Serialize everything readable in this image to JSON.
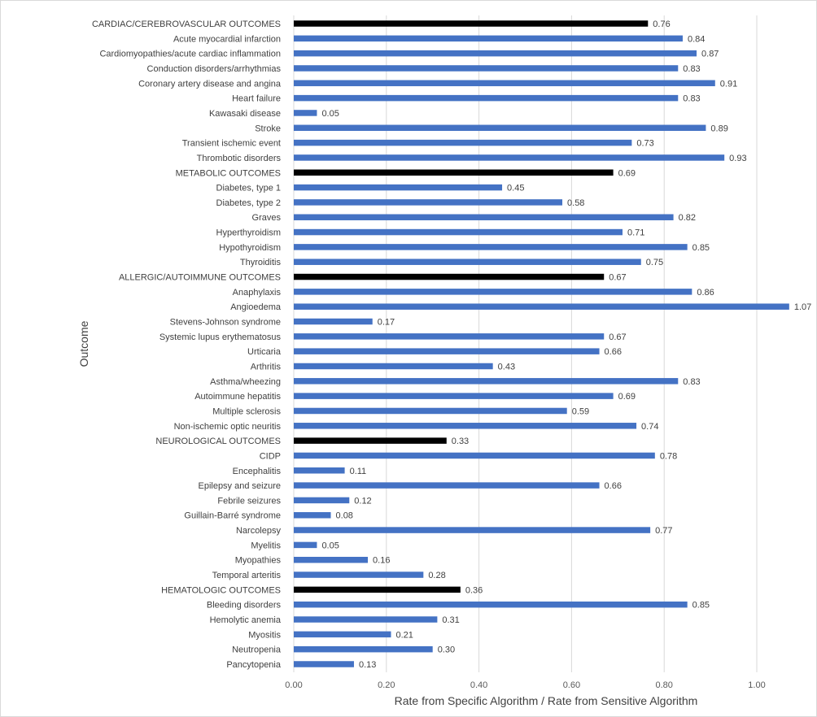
{
  "chart_data": {
    "type": "bar",
    "orientation": "horizontal",
    "title": "",
    "xlabel": "Rate from Specific Algorithm / Rate from Sensitive Algorithm",
    "ylabel": "Outcome",
    "xlim": [
      0,
      1.07
    ],
    "xticks": [
      "0.00",
      "0.20",
      "0.40",
      "0.60",
      "0.80",
      "1.00"
    ],
    "xtick_values": [
      0,
      0.2,
      0.4,
      0.6,
      0.8,
      1.0
    ],
    "grid": true,
    "colors": {
      "category": "#000000",
      "item": "#4472c4"
    },
    "bars": [
      {
        "label": "CARDIAC/CEREBROVASCULAR OUTCOMES",
        "value": 0.765,
        "value_label": "0.76",
        "group": true
      },
      {
        "label": "Acute myocardial infarction",
        "value": 0.84,
        "value_label": "0.84",
        "group": false
      },
      {
        "label": "Cardiomyopathies/acute cardiac inflammation",
        "value": 0.87,
        "value_label": "0.87",
        "group": false
      },
      {
        "label": "Conduction disorders/arrhythmias",
        "value": 0.83,
        "value_label": "0.83",
        "group": false
      },
      {
        "label": "Coronary artery disease and angina",
        "value": 0.91,
        "value_label": "0.91",
        "group": false
      },
      {
        "label": "Heart failure",
        "value": 0.83,
        "value_label": "0.83",
        "group": false
      },
      {
        "label": "Kawasaki disease",
        "value": 0.05,
        "value_label": "0.05",
        "group": false
      },
      {
        "label": "Stroke",
        "value": 0.89,
        "value_label": "0.89",
        "group": false
      },
      {
        "label": "Transient ischemic event",
        "value": 0.73,
        "value_label": "0.73",
        "group": false
      },
      {
        "label": "Thrombotic disorders",
        "value": 0.93,
        "value_label": "0.93",
        "group": false
      },
      {
        "label": "METABOLIC OUTCOMES",
        "value": 0.69,
        "value_label": "0.69",
        "group": true
      },
      {
        "label": "Diabetes, type 1",
        "value": 0.45,
        "value_label": "0.45",
        "group": false
      },
      {
        "label": "Diabetes, type 2",
        "value": 0.58,
        "value_label": "0.58",
        "group": false
      },
      {
        "label": "Graves",
        "value": 0.82,
        "value_label": "0.82",
        "group": false
      },
      {
        "label": "Hyperthyroidism",
        "value": 0.71,
        "value_label": "0.71",
        "group": false
      },
      {
        "label": "Hypothyroidism",
        "value": 0.85,
        "value_label": "0.85",
        "group": false
      },
      {
        "label": "Thyroiditis",
        "value": 0.75,
        "value_label": "0.75",
        "group": false
      },
      {
        "label": "ALLERGIC/AUTOIMMUNE OUTCOMES",
        "value": 0.67,
        "value_label": "0.67",
        "group": true
      },
      {
        "label": "Anaphylaxis",
        "value": 0.86,
        "value_label": "0.86",
        "group": false
      },
      {
        "label": "Angioedema",
        "value": 1.07,
        "value_label": "1.07",
        "group": false
      },
      {
        "label": "Stevens-Johnson syndrome",
        "value": 0.17,
        "value_label": "0.17",
        "group": false
      },
      {
        "label": "Systemic lupus erythematosus",
        "value": 0.67,
        "value_label": "0.67",
        "group": false
      },
      {
        "label": "Urticaria",
        "value": 0.66,
        "value_label": "0.66",
        "group": false
      },
      {
        "label": "Arthritis",
        "value": 0.43,
        "value_label": "0.43",
        "group": false
      },
      {
        "label": "Asthma/wheezing",
        "value": 0.83,
        "value_label": "0.83",
        "group": false
      },
      {
        "label": "Autoimmune hepatitis",
        "value": 0.69,
        "value_label": "0.69",
        "group": false
      },
      {
        "label": "Multiple sclerosis",
        "value": 0.59,
        "value_label": "0.59",
        "group": false
      },
      {
        "label": "Non-ischemic optic neuritis",
        "value": 0.74,
        "value_label": "0.74",
        "group": false
      },
      {
        "label": "NEUROLOGICAL OUTCOMES",
        "value": 0.33,
        "value_label": "0.33",
        "group": true
      },
      {
        "label": "CIDP",
        "value": 0.78,
        "value_label": "0.78",
        "group": false
      },
      {
        "label": "Encephalitis",
        "value": 0.11,
        "value_label": "0.11",
        "group": false
      },
      {
        "label": "Epilepsy and seizure",
        "value": 0.66,
        "value_label": "0.66",
        "group": false
      },
      {
        "label": "Febrile seizures",
        "value": 0.12,
        "value_label": "0.12",
        "group": false
      },
      {
        "label": "Guillain-Barré syndrome",
        "value": 0.08,
        "value_label": "0.08",
        "group": false
      },
      {
        "label": "Narcolepsy",
        "value": 0.77,
        "value_label": "0.77",
        "group": false
      },
      {
        "label": "Myelitis",
        "value": 0.05,
        "value_label": "0.05",
        "group": false
      },
      {
        "label": "Myopathies",
        "value": 0.16,
        "value_label": "0.16",
        "group": false
      },
      {
        "label": "Temporal arteritis",
        "value": 0.28,
        "value_label": "0.28",
        "group": false
      },
      {
        "label": "HEMATOLOGIC OUTCOMES",
        "value": 0.36,
        "value_label": "0.36",
        "group": true
      },
      {
        "label": "Bleeding disorders",
        "value": 0.85,
        "value_label": "0.85",
        "group": false
      },
      {
        "label": "Hemolytic anemia",
        "value": 0.31,
        "value_label": "0.31",
        "group": false
      },
      {
        "label": "Myositis",
        "value": 0.21,
        "value_label": "0.21",
        "group": false
      },
      {
        "label": "Neutropenia",
        "value": 0.3,
        "value_label": "0.30",
        "group": false
      },
      {
        "label": "Pancytopenia",
        "value": 0.13,
        "value_label": "0.13",
        "group": false
      }
    ]
  }
}
